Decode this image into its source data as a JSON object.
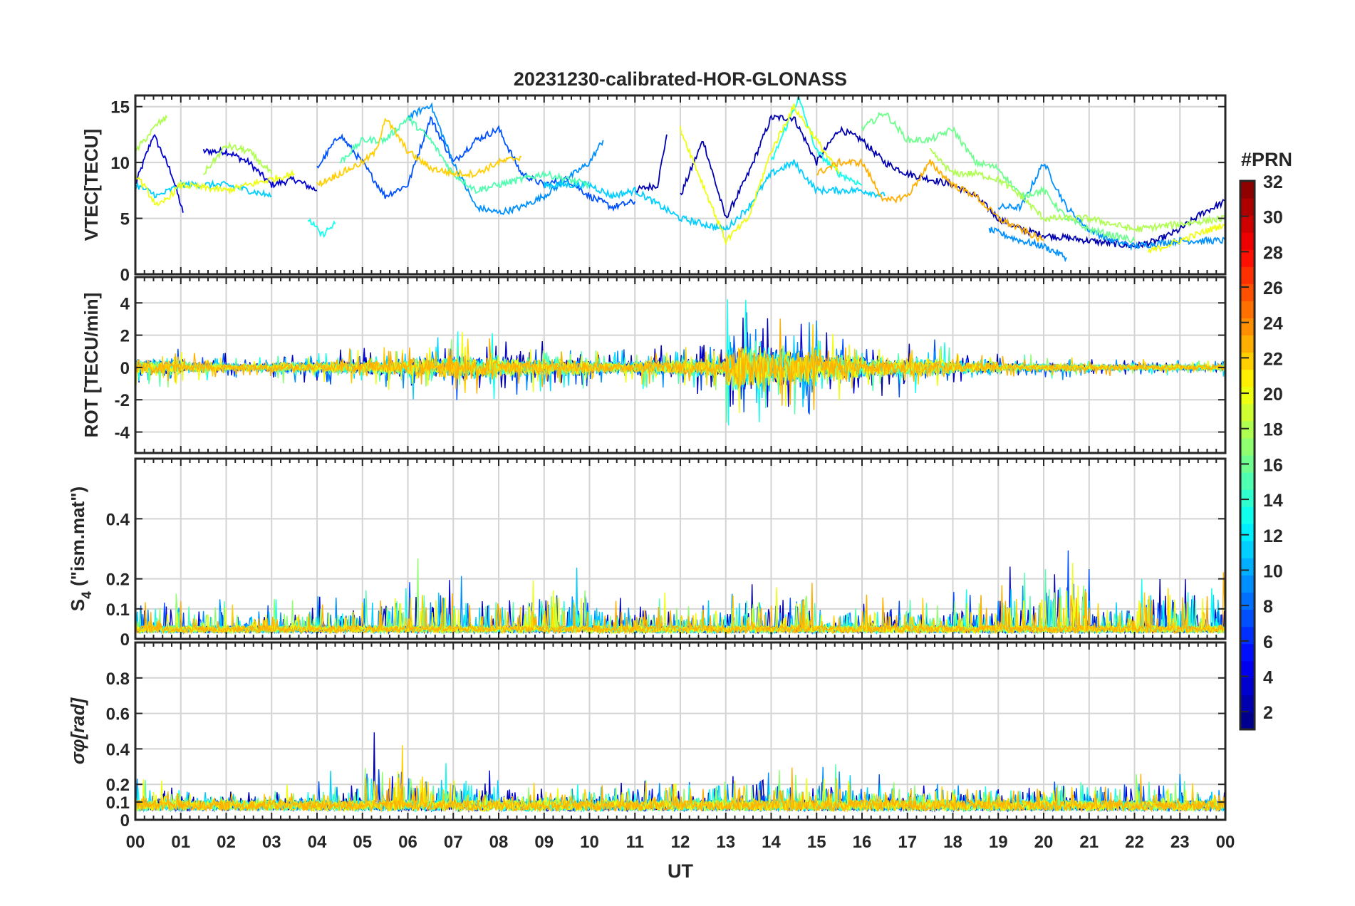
{
  "chart_data": {
    "type": "line",
    "title": "20231230-calibrated-HOR-GLONASS",
    "xlabel": "UT",
    "x_range_hours": [
      0,
      24
    ],
    "x_tick_labels": [
      "00",
      "01",
      "02",
      "03",
      "04",
      "05",
      "06",
      "07",
      "08",
      "09",
      "10",
      "11",
      "12",
      "13",
      "14",
      "15",
      "16",
      "17",
      "18",
      "19",
      "20",
      "21",
      "22",
      "23",
      "00"
    ],
    "grid": true,
    "colorbar": {
      "title": "#PRN",
      "range": [
        1,
        32
      ],
      "colormap": "jet",
      "levels": 32,
      "ticks": [
        "2",
        "4",
        "6",
        "8",
        "10",
        "12",
        "14",
        "16",
        "18",
        "20",
        "22",
        "24",
        "26",
        "28",
        "30",
        "32"
      ],
      "placement": "right"
    },
    "panels": [
      {
        "id": "vtec",
        "ylabel": "VTEC[TECU]",
        "ylim": [
          0,
          16
        ],
        "yticks": [
          0,
          5,
          10,
          15
        ],
        "ytick_labels": [
          "0",
          "5",
          "10",
          "15"
        ],
        "series": [
          {
            "prn": 3,
            "points": [
              [
                0,
                8
              ],
              [
                0.4,
                12.5
              ],
              [
                0.8,
                9
              ],
              [
                1.05,
                5.5
              ]
            ]
          },
          {
            "prn": 3,
            "points": [
              [
                1.5,
                11
              ],
              [
                2,
                11
              ],
              [
                2.5,
                10
              ],
              [
                3,
                8
              ],
              [
                3.5,
                8.5
              ],
              [
                4,
                7.5
              ]
            ]
          },
          {
            "prn": 2,
            "points": [
              [
                11,
                7.5
              ],
              [
                11.5,
                8
              ],
              [
                11.7,
                12.5
              ]
            ]
          },
          {
            "prn": 2,
            "points": [
              [
                12,
                7
              ],
              [
                12.5,
                12
              ],
              [
                13,
                5
              ],
              [
                13.5,
                9
              ],
              [
                14,
                14
              ],
              [
                14.5,
                14
              ],
              [
                15,
                10
              ],
              [
                15.5,
                13
              ],
              [
                16,
                12
              ],
              [
                16.5,
                10
              ],
              [
                17,
                9
              ],
              [
                18,
                8
              ],
              [
                18.5,
                7
              ],
              [
                19,
                5
              ],
              [
                19.5,
                4
              ],
              [
                20,
                3.5
              ],
              [
                21,
                3
              ],
              [
                22,
                2.5
              ],
              [
                22.5,
                3
              ],
              [
                23,
                4
              ],
              [
                23.5,
                5.5
              ],
              [
                24,
                6.5
              ]
            ]
          },
          {
            "prn": 7,
            "points": [
              [
                4,
                9.5
              ],
              [
                4.5,
                12.5
              ],
              [
                5,
                10
              ],
              [
                5.5,
                7
              ],
              [
                6,
                8
              ],
              [
                6.5,
                14
              ],
              [
                7,
                10
              ],
              [
                7.5,
                12
              ],
              [
                8,
                13
              ],
              [
                8.5,
                9
              ],
              [
                9,
                8
              ],
              [
                9.5,
                8.5
              ],
              [
                10,
                7
              ],
              [
                10.5,
                6
              ],
              [
                11,
                6.5
              ]
            ]
          },
          {
            "prn": 9,
            "points": [
              [
                6,
                14
              ],
              [
                6.5,
                15.2
              ],
              [
                7,
                10
              ],
              [
                7.5,
                6
              ],
              [
                8,
                5.5
              ],
              [
                8.5,
                6
              ],
              [
                9,
                7
              ],
              [
                9.5,
                8.5
              ],
              [
                10,
                10
              ],
              [
                10.3,
                12
              ]
            ]
          },
          {
            "prn": 9,
            "points": [
              [
                19,
                6
              ],
              [
                19.5,
                6
              ],
              [
                20,
                10
              ],
              [
                20.5,
                6
              ],
              [
                21,
                4
              ],
              [
                21.5,
                3
              ],
              [
                22,
                2.5
              ],
              [
                23,
                3
              ],
              [
                24,
                3
              ]
            ]
          },
          {
            "prn": 9,
            "points": [
              [
                18.8,
                4
              ],
              [
                19.5,
                3
              ],
              [
                20,
                2.5
              ],
              [
                20.5,
                1.5
              ]
            ]
          },
          {
            "prn": 11,
            "points": [
              [
                0,
                8
              ],
              [
                0.5,
                7
              ],
              [
                1,
                8
              ],
              [
                2,
                8
              ],
              [
                3,
                7
              ]
            ]
          },
          {
            "prn": 11,
            "points": [
              [
                9,
                8
              ],
              [
                10,
                8
              ],
              [
                10.5,
                7
              ],
              [
                11,
                7.5
              ],
              [
                12,
                5
              ],
              [
                13,
                4
              ],
              [
                13.5,
                6
              ],
              [
                14,
                9
              ],
              [
                14.5,
                10
              ],
              [
                15,
                7.5
              ],
              [
                16,
                7.5
              ],
              [
                16.5,
                7
              ]
            ]
          },
          {
            "prn": 13,
            "points": [
              [
                3.8,
                5
              ],
              [
                4.1,
                3.5
              ],
              [
                4.4,
                4.5
              ]
            ]
          },
          {
            "prn": 13,
            "points": [
              [
                14,
                10
              ],
              [
                14.6,
                15.8
              ],
              [
                15,
                11
              ],
              [
                15.5,
                9
              ],
              [
                16,
                8
              ]
            ]
          },
          {
            "prn": 15,
            "points": [
              [
                4.5,
                10
              ],
              [
                5,
                12
              ],
              [
                5.5,
                12
              ],
              [
                6,
                14
              ],
              [
                6.5,
                12
              ],
              [
                7,
                9
              ],
              [
                7.5,
                7.5
              ],
              [
                8,
                8
              ],
              [
                9,
                9
              ],
              [
                10,
                8
              ]
            ]
          },
          {
            "prn": 16,
            "points": [
              [
                16,
                13
              ],
              [
                16.5,
                14.5
              ],
              [
                17,
                12
              ],
              [
                17.5,
                12
              ],
              [
                18,
                13
              ],
              [
                18.5,
                10
              ],
              [
                19,
                9.5
              ],
              [
                19.5,
                7
              ],
              [
                20,
                7.5
              ],
              [
                20.5,
                5
              ],
              [
                21,
                4
              ],
              [
                22,
                3
              ]
            ]
          },
          {
            "prn": 18,
            "points": [
              [
                0,
                11
              ],
              [
                0.5,
                13.5
              ],
              [
                0.7,
                14
              ]
            ]
          },
          {
            "prn": 18,
            "points": [
              [
                1.5,
                9
              ],
              [
                2,
                11.5
              ],
              [
                2.5,
                11
              ],
              [
                3,
                9
              ]
            ]
          },
          {
            "prn": 18,
            "points": [
              [
                17.5,
                11
              ],
              [
                18,
                9
              ],
              [
                18.5,
                9
              ],
              [
                19,
                8.5
              ],
              [
                19.5,
                7
              ],
              [
                20,
                5
              ],
              [
                21,
                5
              ],
              [
                22,
                4
              ],
              [
                23,
                4.5
              ],
              [
                24,
                5
              ]
            ]
          },
          {
            "prn": 20,
            "points": [
              [
                0,
                9
              ],
              [
                0.5,
                6
              ],
              [
                1,
                8
              ],
              [
                2,
                7.5
              ],
              [
                3,
                8.5
              ],
              [
                3.5,
                9
              ]
            ]
          },
          {
            "prn": 20,
            "points": [
              [
                12,
                13
              ],
              [
                12.5,
                8
              ],
              [
                13,
                3
              ],
              [
                13.5,
                5
              ],
              [
                14,
                11
              ],
              [
                14.5,
                15
              ],
              [
                15,
                12
              ],
              [
                15.5,
                9
              ]
            ]
          },
          {
            "prn": 20,
            "points": [
              [
                22.3,
                2
              ],
              [
                23,
                3
              ],
              [
                24,
                4.5
              ]
            ]
          },
          {
            "prn": 22,
            "points": [
              [
                4,
                8
              ],
              [
                5,
                10
              ],
              [
                5.3,
                11
              ],
              [
                5.5,
                14
              ],
              [
                6,
                11
              ],
              [
                6.5,
                9.5
              ],
              [
                7,
                9
              ],
              [
                7.5,
                9
              ],
              [
                8,
                10
              ],
              [
                8.5,
                10.5
              ]
            ]
          },
          {
            "prn": 23,
            "points": [
              [
                15,
                9
              ],
              [
                15.5,
                10
              ],
              [
                16,
                10
              ],
              [
                16.5,
                6.5
              ],
              [
                17,
                7
              ],
              [
                17.5,
                10
              ],
              [
                18,
                8
              ],
              [
                18.5,
                7
              ],
              [
                19,
                5
              ],
              [
                19.5,
                4
              ],
              [
                20,
                3
              ]
            ]
          }
        ]
      },
      {
        "id": "rot",
        "ylabel": "ROT [TECU/min]",
        "ylim": [
          -5.3,
          5.6
        ],
        "yticks": [
          -4,
          -2,
          0,
          2,
          4
        ],
        "ytick_labels": [
          "-4",
          "-2",
          "0",
          "2",
          "4"
        ],
        "noise_amplitude_by_hour": [
          0.8,
          0.5,
          0.4,
          0.5,
          0.6,
          0.7,
          1.0,
          1.2,
          0.9,
          0.8,
          0.6,
          0.7,
          0.9,
          2.2,
          1.8,
          1.2,
          0.9,
          0.9,
          0.6,
          0.4,
          0.4,
          0.3,
          0.3,
          0.3
        ]
      },
      {
        "id": "s4",
        "ylabel": "S4 (\"ism.mat\")",
        "ylabel_main": "S",
        "ylabel_sub": "4",
        "ylabel_rest": " (\"ism.mat\")",
        "ylim": [
          0,
          0.6
        ],
        "yticks": [
          0,
          0.1,
          0.2,
          0.4
        ],
        "ytick_labels": [
          "0",
          "0.1",
          "0.2",
          "0.4"
        ],
        "peak_by_hour": [
          0.14,
          0.12,
          0.1,
          0.12,
          0.13,
          0.2,
          0.24,
          0.18,
          0.2,
          0.25,
          0.13,
          0.14,
          0.11,
          0.17,
          0.19,
          0.09,
          0.12,
          0.1,
          0.13,
          0.21,
          0.29,
          0.12,
          0.22,
          0.22
        ]
      },
      {
        "id": "sigma_phi",
        "ylabel": "σφ[rad]",
        "ylabel_main": "σ",
        "ylabel_sub": "φ",
        "ylabel_rest": "[rad]",
        "ylim": [
          0,
          1
        ],
        "yticks": [
          0,
          0.1,
          0.2,
          0.4,
          0.6,
          0.8
        ],
        "ytick_labels": [
          "0",
          "0.1",
          "0.2",
          "0.4",
          "0.6",
          "0.8"
        ],
        "peak_by_hour": [
          0.18,
          0.1,
          0.1,
          0.12,
          0.2,
          0.42,
          0.3,
          0.25,
          0.15,
          0.14,
          0.15,
          0.2,
          0.18,
          0.24,
          0.2,
          0.22,
          0.16,
          0.15,
          0.15,
          0.14,
          0.2,
          0.18,
          0.22,
          0.16
        ]
      }
    ]
  }
}
